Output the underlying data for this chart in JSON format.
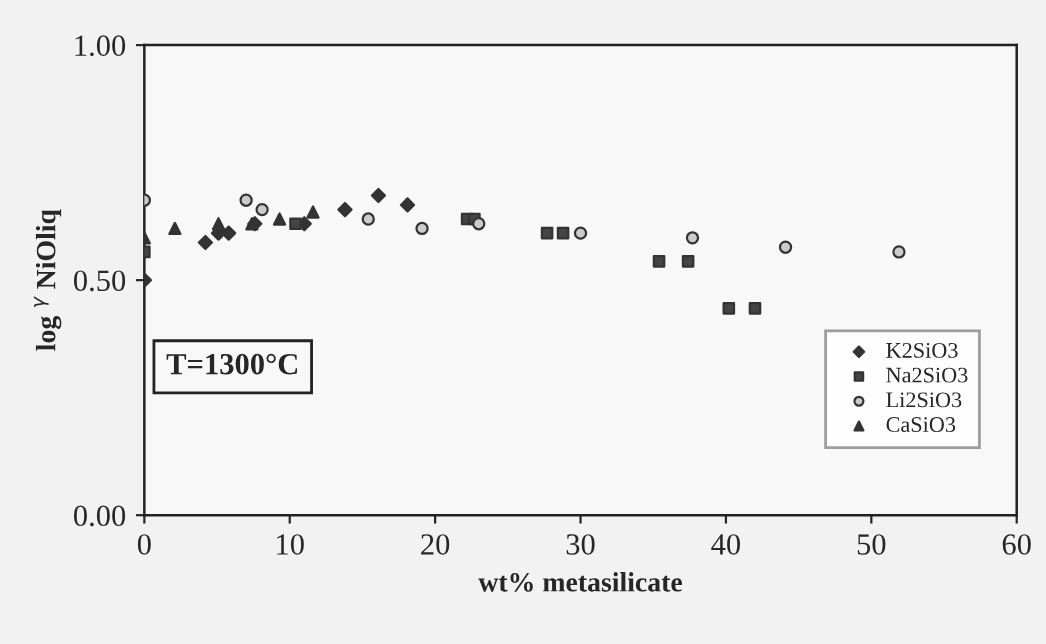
{
  "chart_data": {
    "type": "scatter",
    "xlabel": "wt% metasilicate",
    "ylabel": "log $^{γ}$ NiOliq",
    "xlim": [
      0,
      60
    ],
    "xticks": [
      0,
      10,
      20,
      30,
      40,
      50,
      60
    ],
    "ylim": [
      0,
      1
    ],
    "yticks": [
      {
        "value": 0,
        "label": "0.00"
      },
      {
        "value": 0.5,
        "label": "0.50"
      },
      {
        "value": 1,
        "label": "1.00"
      }
    ],
    "grid": false,
    "legend": "bottom right",
    "annotations": [
      "T=1300°C"
    ],
    "series": [
      {
        "name": "K2SiO3",
        "color": "#333333",
        "marker": "diamond",
        "x": [
          0,
          4.2,
          5.1,
          5.8,
          7.6,
          11.0,
          13.8,
          16.1,
          18.1
        ],
        "values": [
          0.5,
          0.58,
          0.6,
          0.6,
          0.62,
          0.62,
          0.65,
          0.68,
          0.66
        ]
      },
      {
        "name": "Na2SiO3",
        "color": "#444444",
        "marker": "square",
        "x": [
          0,
          10.4,
          22.2,
          22.7,
          27.7,
          28.8,
          35.4,
          37.4,
          40.2,
          42.0
        ],
        "values": [
          0.56,
          0.62,
          0.63,
          0.63,
          0.6,
          0.6,
          0.54,
          0.54,
          0.44,
          0.44
        ]
      },
      {
        "name": "Li2SiO3",
        "color": "#cccccc",
        "marker": "circle",
        "x": [
          0,
          7.0,
          8.1,
          15.4,
          19.1,
          23.0,
          30.0,
          37.7,
          44.1,
          51.9
        ],
        "values": [
          0.67,
          0.67,
          0.65,
          0.63,
          0.61,
          0.62,
          0.6,
          0.59,
          0.57,
          0.56
        ]
      },
      {
        "name": "CaSiO3",
        "color": "#333333",
        "marker": "triangle",
        "x": [
          0,
          2.1,
          5.1,
          7.4,
          9.3,
          11.6
        ],
        "values": [
          0.59,
          0.61,
          0.62,
          0.62,
          0.63,
          0.645
        ]
      }
    ]
  }
}
